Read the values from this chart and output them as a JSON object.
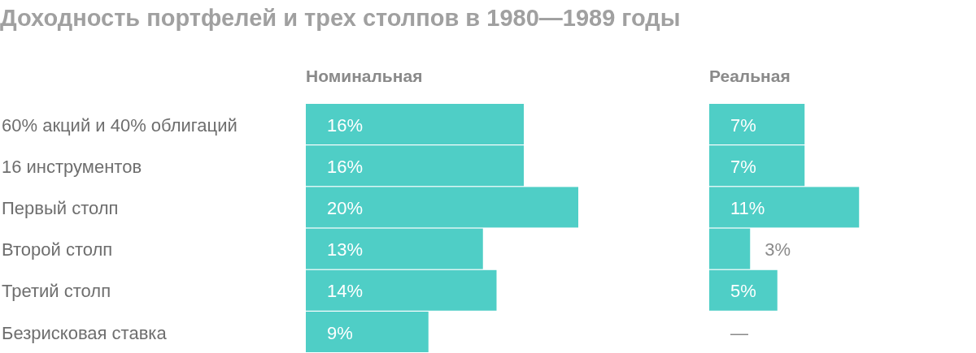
{
  "chart_data": [
    {
      "type": "bar",
      "orientation": "horizontal",
      "relative": false,
      "title": "Доходность портфелей и трех столпов в 1980—1989 годы",
      "subtitle": "Номинальная",
      "categories": [
        "60% акций и 40% облигаций",
        "16 инструментов",
        "Первый столп",
        "Второй столп",
        "Третий столп",
        "Безрисковая ставка"
      ],
      "values": [
        16,
        16,
        20,
        13,
        14,
        9
      ],
      "color": "#4fcec6",
      "value_labels": [
        "16%",
        "16%",
        "20%",
        "13%",
        "14%",
        "9%"
      ]
    },
    {
      "type": "bar",
      "orientation": "horizontal",
      "title": "Реальная",
      "categories": [
        null,
        null,
        null,
        null,
        null,
        null
      ],
      "values": [
        7,
        7,
        11,
        3,
        5,
        null
      ],
      "color": "#4fcec6",
      "value_labels": [
        "7%",
        "7%",
        "11%",
        "3%",
        "5%",
        "—"
      ]
    }
  ]
}
